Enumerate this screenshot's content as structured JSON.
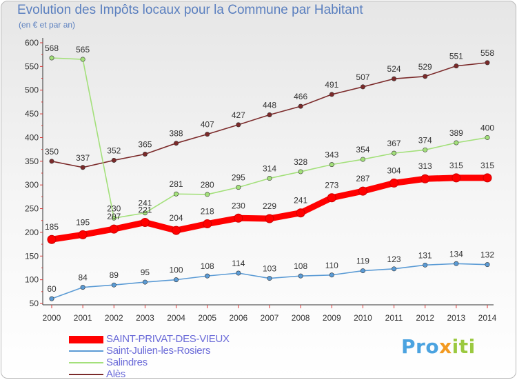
{
  "title": "Evolution des Impôts locaux pour la Commune par Habitant",
  "subtitle": "(en € et par an)",
  "logo": {
    "text": "Proxiti",
    "part1": "Pro",
    "part2": "x",
    "part3": "iti"
  },
  "chart_data": {
    "type": "line",
    "title": "Evolution des Impôts locaux pour la Commune par Habitant",
    "subtitle": "(en € et par an)",
    "xlabel": "",
    "ylabel": "",
    "categories": [
      "2000",
      "2001",
      "2002",
      "2003",
      "2004",
      "2005",
      "2006",
      "2007",
      "2008",
      "2009",
      "2010",
      "2011",
      "2012",
      "2013",
      "2014"
    ],
    "yticks": [
      50,
      100,
      150,
      200,
      250,
      300,
      350,
      400,
      450,
      500,
      550,
      600
    ],
    "ylim": [
      50,
      600
    ],
    "grid": false,
    "legend_position": "bottom-left",
    "series": [
      {
        "name": "SAINT-PRIVAT-DES-VIEUX",
        "color": "#ff0000",
        "labelColor": "#333333",
        "thick": true,
        "values": [
          185,
          195,
          207,
          221,
          204,
          218,
          230,
          229,
          241,
          273,
          287,
          304,
          313,
          315,
          315
        ]
      },
      {
        "name": "Saint-Julien-les-Rosiers",
        "color": "#5b9bd5",
        "labelColor": "#333333",
        "thick": false,
        "values": [
          60,
          84,
          89,
          95,
          100,
          108,
          114,
          103,
          108,
          110,
          119,
          123,
          131,
          134,
          132
        ]
      },
      {
        "name": "Salindres",
        "color": "#a3e07a",
        "labelColor": "#333333",
        "thick": false,
        "values": [
          568,
          565,
          230,
          241,
          281,
          280,
          295,
          314,
          328,
          343,
          354,
          367,
          374,
          389,
          400
        ]
      },
      {
        "name": "Alès",
        "color": "#7b2a2a",
        "labelColor": "#333333",
        "thick": false,
        "values": [
          350,
          337,
          352,
          365,
          388,
          407,
          427,
          448,
          466,
          491,
          507,
          524,
          529,
          551,
          558
        ]
      }
    ]
  }
}
